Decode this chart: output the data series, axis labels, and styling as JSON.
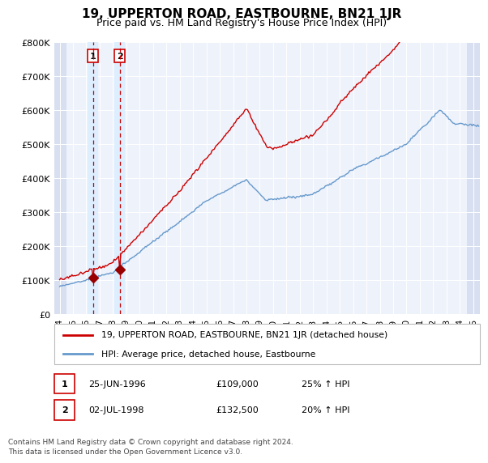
{
  "title": "19, UPPERTON ROAD, EASTBOURNE, BN21 1JR",
  "subtitle": "Price paid vs. HM Land Registry's House Price Index (HPI)",
  "ylim": [
    0,
    800000
  ],
  "yticks": [
    0,
    100000,
    200000,
    300000,
    400000,
    500000,
    600000,
    700000,
    800000
  ],
  "ytick_labels": [
    "£0",
    "£100K",
    "£200K",
    "£300K",
    "£400K",
    "£500K",
    "£600K",
    "£700K",
    "£800K"
  ],
  "xlim_left": 1993.6,
  "xlim_right": 2025.5,
  "sale1_date": 1996.49,
  "sale1_price": 109000,
  "sale2_date": 1998.5,
  "sale2_price": 132500,
  "line_color_red": "#cc0000",
  "line_color_blue": "#6699cc",
  "marker_color": "#990000",
  "dashed_color": "#cc0000",
  "highlight_color": "#ddeeff",
  "background_plot": "#eef2fb",
  "hatch_color": "#d8dff0",
  "legend_label_red": "19, UPPERTON ROAD, EASTBOURNE, BN21 1JR (detached house)",
  "legend_label_blue": "HPI: Average price, detached house, Eastbourne",
  "footer": "Contains HM Land Registry data © Crown copyright and database right 2024.\nThis data is licensed under the Open Government Licence v3.0.",
  "title_fontsize": 11,
  "subtitle_fontsize": 9
}
